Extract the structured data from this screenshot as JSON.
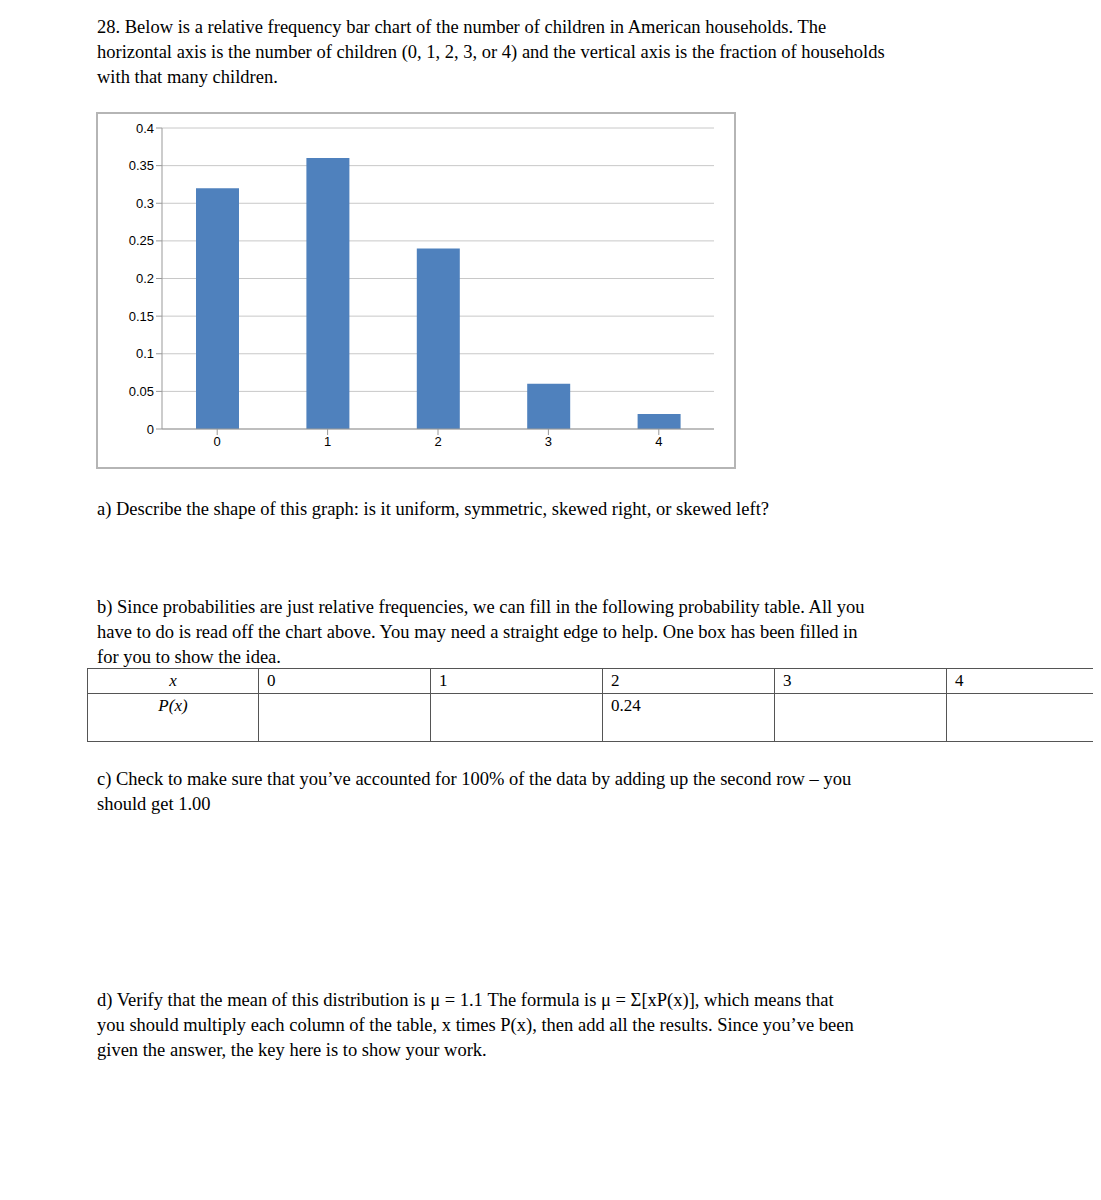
{
  "question": [
    "28. Below is a relative frequency bar chart of the number of children in American households. The",
    "horizontal axis is the number of children (0, 1, 2, 3, or 4) and the vertical axis is the fraction of households",
    "with that many children."
  ],
  "chart_data": {
    "type": "bar",
    "categories": [
      "0",
      "1",
      "2",
      "3",
      "4"
    ],
    "values": [
      0.32,
      0.36,
      0.24,
      0.06,
      0.02
    ],
    "color": "#4f81bd",
    "ylim": [
      0,
      0.4
    ],
    "yticks": [
      0,
      0.05,
      0.1,
      0.15,
      0.2,
      0.25,
      0.3,
      0.35,
      0.4
    ],
    "grid": true
  },
  "part_a": [
    "a) Describe the shape of this graph: is it uniform, symmetric, skewed right, or skewed left?"
  ],
  "part_b": [
    "b) Since probabilities are just relative frequencies, we can fill in the following probability table. All you",
    "have to do is read off the chart above. You may need a straight edge to help. One box has been filled in",
    "for you to show the idea."
  ],
  "table": {
    "rows": [
      [
        "x",
        "0",
        "1",
        "2",
        "3",
        "4"
      ],
      [
        "P(x)",
        null,
        null,
        "0.24",
        null,
        null
      ]
    ]
  },
  "part_c": [
    "c) Check to make sure that you’ve accounted for 100% of the data by adding up the second row – you",
    "should get 1.00"
  ],
  "part_d": [
    "d) Verify that the mean of this distribution is μ = 1.1  The formula is μ = Σ[xP(x)], which means that",
    "you should multiply each column of the table, x times P(x), then add all the results. Since you’ve been",
    "given the answer, the key here is to show your work."
  ]
}
